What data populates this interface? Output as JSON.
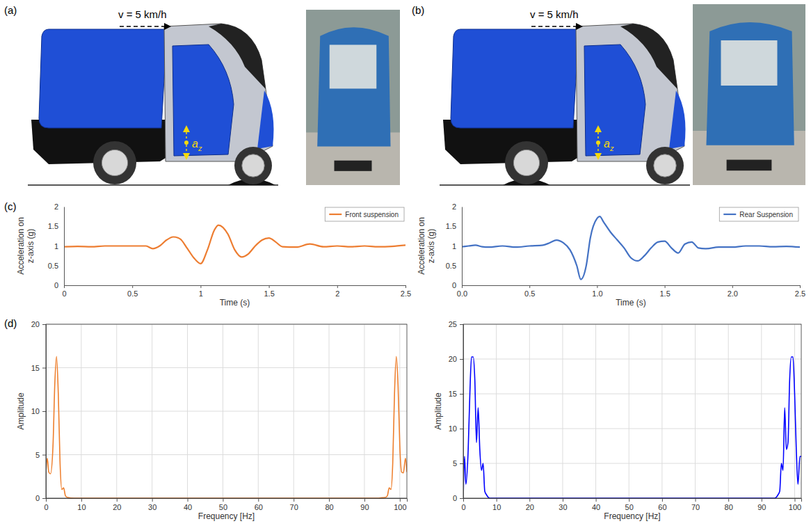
{
  "panel_labels": [
    "(a)",
    "(b)",
    "(c)",
    "(d)"
  ],
  "illustrations": [
    {
      "speed": "v = 5 km/h",
      "accel_symbol": "a",
      "accel_subscript": "z"
    },
    {
      "speed": "v = 5 km/h",
      "accel_symbol": "a",
      "accel_subscript": "z"
    }
  ],
  "chart_data": [
    {
      "type": "line",
      "x_label": "Time (s)",
      "y_label": "Acceleration on z-axis (g)",
      "x": [
        0,
        0.1,
        0.2,
        0.3,
        0.4,
        0.5,
        0.55,
        0.6,
        0.65,
        0.7,
        0.75,
        0.8,
        0.85,
        0.9,
        0.95,
        1.0,
        1.05,
        1.1,
        1.13,
        1.2,
        1.25,
        1.3,
        1.35,
        1.4,
        1.45,
        1.5,
        1.55,
        1.6,
        1.7,
        1.8,
        1.9,
        2.0,
        2.1,
        2.2,
        2.3,
        2.4,
        2.5
      ],
      "series": [
        {
          "name": "Front suspension",
          "color": "#ED7D31",
          "values": [
            0.98,
            0.99,
            0.98,
            1.0,
            1.0,
            1.0,
            1.0,
            1.0,
            0.93,
            1.0,
            1.15,
            1.23,
            1.18,
            0.95,
            0.7,
            0.55,
            0.9,
            1.4,
            1.53,
            1.3,
            0.9,
            0.72,
            0.8,
            1.0,
            1.15,
            1.2,
            1.1,
            0.98,
            0.97,
            1.05,
            0.98,
            1.0,
            0.98,
            1.0,
            0.98,
            0.99,
            1.02
          ]
        }
      ],
      "xlim": [
        0,
        2.5
      ],
      "xticks": [
        0,
        0.5,
        1,
        1.5,
        2,
        2.5
      ],
      "ylim": [
        0,
        2
      ],
      "yticks": [
        0,
        0.5,
        1,
        1.5,
        2
      ],
      "grid": false,
      "legend": "upper right"
    },
    {
      "type": "line",
      "x_label": "Time (s)",
      "y_label": "Acceleration on z-axis (g)",
      "x": [
        0,
        0.05,
        0.1,
        0.15,
        0.2,
        0.3,
        0.4,
        0.5,
        0.6,
        0.65,
        0.7,
        0.75,
        0.8,
        0.85,
        0.88,
        0.92,
        0.95,
        1.0,
        1.02,
        1.05,
        1.1,
        1.15,
        1.2,
        1.25,
        1.3,
        1.35,
        1.4,
        1.45,
        1.5,
        1.55,
        1.6,
        1.65,
        1.7,
        1.75,
        1.8,
        1.9,
        2.0,
        2.1,
        2.2,
        2.3,
        2.4,
        2.5
      ],
      "series": [
        {
          "name": "Rear Suspension",
          "color": "#4472C4",
          "values": [
            0.98,
            1.0,
            1.02,
            0.98,
            0.97,
            1.0,
            0.97,
            1.0,
            1.02,
            1.08,
            1.15,
            1.08,
            0.9,
            0.5,
            0.15,
            0.5,
            1.2,
            1.7,
            1.75,
            1.6,
            1.35,
            1.15,
            0.95,
            0.7,
            0.62,
            0.75,
            0.95,
            1.1,
            1.12,
            0.95,
            0.82,
            1.05,
            1.1,
            0.95,
            0.93,
            0.97,
            0.97,
            1.0,
            1.0,
            0.98,
            0.99,
            0.97
          ]
        }
      ],
      "xlim": [
        0,
        2.5
      ],
      "xticks": [
        {
          "value": 0,
          "label": "0.0"
        },
        {
          "value": 0.5,
          "label": "0.5"
        },
        {
          "value": 1,
          "label": "1.0"
        },
        {
          "value": 1.5,
          "label": "1.5"
        },
        {
          "value": 2,
          "label": "2.0"
        },
        {
          "value": 2.5,
          "label": "2.5"
        }
      ],
      "ylim": [
        0,
        2
      ],
      "yticks": [
        0,
        0.5,
        1,
        1.5,
        2
      ],
      "grid": false,
      "legend": "upper right"
    },
    {
      "type": "line",
      "x_label": "Frequency [Hz]",
      "y_label": "Amplitude",
      "x": [
        0,
        0.4,
        0.8,
        1.3,
        2,
        2.5,
        3,
        3.5,
        4,
        4.5,
        5,
        5.5,
        6,
        8,
        10,
        20,
        30,
        40,
        50,
        60,
        70,
        80,
        90,
        94,
        95,
        96,
        96.5,
        97,
        97.5,
        98,
        98.5,
        99,
        99.5,
        100,
        100.5,
        101,
        101.6,
        102
      ],
      "series": [
        {
          "color": "#EE7F2D",
          "values": [
            3,
            4.6,
            3,
            2.8,
            6,
            13,
            16.3,
            12,
            4,
            1,
            1.2,
            0.3,
            0.1,
            0,
            0,
            0,
            0,
            0,
            0,
            0,
            0,
            0,
            0,
            0,
            0.05,
            0.1,
            0.3,
            1.2,
            1,
            4,
            12,
            16.3,
            13,
            6,
            3,
            2.9,
            4.6,
            3
          ]
        }
      ],
      "xlim": [
        0,
        102
      ],
      "xticks": [
        0,
        10,
        20,
        30,
        40,
        50,
        60,
        70,
        80,
        90,
        100
      ],
      "ylim": [
        0,
        20
      ],
      "yticks": [
        0,
        5,
        10,
        15,
        20
      ],
      "grid": true
    },
    {
      "type": "line",
      "x_label": "Frequency [Hz]",
      "y_label": "Amplitude",
      "x": [
        0,
        0.4,
        0.8,
        1.5,
        2,
        2.5,
        3,
        3.5,
        4,
        4.5,
        5,
        5.5,
        6,
        6.5,
        7,
        8,
        10,
        20,
        30,
        40,
        50,
        60,
        70,
        80,
        90,
        94,
        95,
        95.5,
        96,
        96.5,
        97,
        97.5,
        98,
        98.5,
        99,
        99.5,
        100,
        100.5,
        101,
        101.6,
        102
      ],
      "series": [
        {
          "color": "#0000FF",
          "values": [
            0,
            6,
            2,
            7,
            15,
            20.3,
            20.3,
            17,
            8,
            13,
            7,
            4,
            5,
            1,
            0.5,
            0,
            0,
            0,
            0,
            0,
            0,
            0,
            0,
            0,
            0,
            0,
            0.5,
            1,
            5,
            4,
            13,
            7,
            8,
            17,
            20.3,
            20.3,
            15,
            7,
            2,
            6,
            6
          ]
        }
      ],
      "xlim": [
        0,
        102
      ],
      "xticks": [
        0,
        10,
        20,
        30,
        40,
        50,
        60,
        70,
        80,
        90,
        100
      ],
      "ylim": [
        0,
        25
      ],
      "yticks": [
        0,
        5,
        10,
        15,
        20,
        25
      ],
      "grid": true
    }
  ]
}
